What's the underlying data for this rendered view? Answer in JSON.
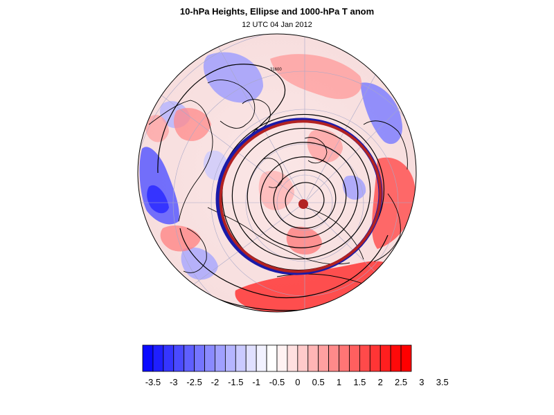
{
  "title": "10-hPa Heights, Ellipse and 1000-hPa T anom",
  "subtitle": "12 UTC 04 Jan 2012",
  "map": {
    "projection": "polar-stereographic (north pole)",
    "contour_label": "31600",
    "ellipse_color": "#b22222",
    "ellipse_outline_color": "#1a1aa8",
    "center_marker_color": "#b22222",
    "coast_color": "#000000"
  },
  "colorbar": {
    "labels": [
      "-3.5",
      "-3",
      "-2.5",
      "-2",
      "-1.5",
      "-1",
      "-0.5",
      "0",
      "0.5",
      "1",
      "1.5",
      "2",
      "2.5",
      "3",
      "3.5"
    ],
    "colors": [
      "#0a0aff",
      "#1f1fff",
      "#3535ff",
      "#4a4aff",
      "#5f5fff",
      "#7575ff",
      "#8a8aff",
      "#a0a0ff",
      "#b5b5ff",
      "#cacaff",
      "#e0e0ff",
      "#f2f2ff",
      "#ffffff",
      "#fff2f2",
      "#ffe0e0",
      "#ffcaca",
      "#ffb5b5",
      "#ffa0a0",
      "#ff8a8a",
      "#ff7575",
      "#ff5f5f",
      "#ff4a4a",
      "#ff3535",
      "#ff1f1f",
      "#ff0a0a",
      "#ff0000"
    ]
  }
}
